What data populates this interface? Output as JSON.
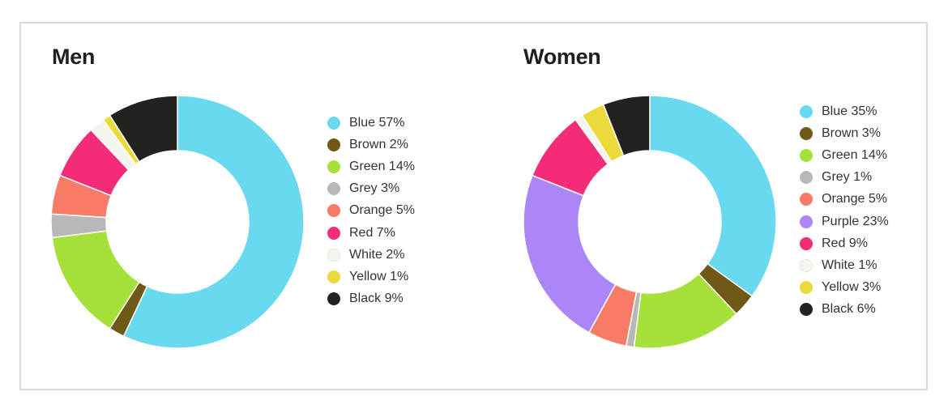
{
  "chart_data": [
    {
      "type": "pie",
      "title": "Men",
      "slices": [
        {
          "label": "Blue 57%",
          "name": "Blue",
          "value": 57,
          "color": "#68d9ee"
        },
        {
          "label": "Brown 2%",
          "name": "Brown",
          "value": 2,
          "color": "#6e5a16"
        },
        {
          "label": "Green 14%",
          "name": "Green",
          "value": 14,
          "color": "#a5e03b"
        },
        {
          "label": "Grey 3%",
          "name": "Grey",
          "value": 3,
          "color": "#b8b8b8"
        },
        {
          "label": "Orange 5%",
          "name": "Orange",
          "value": 5,
          "color": "#f77b66"
        },
        {
          "label": "Red 7%",
          "name": "Red",
          "value": 7,
          "color": "#f32c78"
        },
        {
          "label": "White 2%",
          "name": "White",
          "value": 2,
          "color": "#f5f5ef"
        },
        {
          "label": "Yellow 1%",
          "name": "Yellow",
          "value": 1,
          "color": "#ecd93a"
        },
        {
          "label": "Black 9%",
          "name": "Black",
          "value": 9,
          "color": "#22221f"
        }
      ]
    },
    {
      "type": "pie",
      "title": "Women",
      "slices": [
        {
          "label": "Blue 35%",
          "name": "Blue",
          "value": 35,
          "color": "#68d9ee"
        },
        {
          "label": "Brown 3%",
          "name": "Brown",
          "value": 3,
          "color": "#6e5a16"
        },
        {
          "label": "Green 14%",
          "name": "Green",
          "value": 14,
          "color": "#a5e03b"
        },
        {
          "label": "Grey 1%",
          "name": "Grey",
          "value": 1,
          "color": "#b8b8b8"
        },
        {
          "label": "Orange 5%",
          "name": "Orange",
          "value": 5,
          "color": "#f77b66"
        },
        {
          "label": "Purple 23%",
          "name": "Purple",
          "value": 23,
          "color": "#ab86f6"
        },
        {
          "label": "Red 9%",
          "name": "Red",
          "value": 9,
          "color": "#f32c78"
        },
        {
          "label": "White 1%",
          "name": "White",
          "value": 1,
          "color": "#f5f5ef"
        },
        {
          "label": "Yellow 3%",
          "name": "Yellow",
          "value": 3,
          "color": "#ecd93a"
        },
        {
          "label": "Black 6%",
          "name": "Black",
          "value": 6,
          "color": "#22221f"
        }
      ]
    }
  ]
}
